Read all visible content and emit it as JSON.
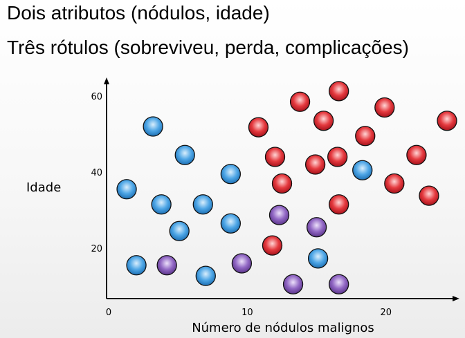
{
  "slide": {
    "line1": "Dois atributos (nódulos, idade)",
    "line2": "Três rótulos (sobreviveu, perda, complicações)"
  },
  "colors": {
    "blue": "#2e8fd9",
    "red": "#d8202c",
    "purple": "#7f55b0"
  },
  "chart_data": {
    "type": "scatter",
    "xlabel": "Número de nódulos malignos",
    "ylabel": "Idade",
    "xlim": [
      0,
      24.5
    ],
    "ylim": [
      8,
      62
    ],
    "xticks": [
      0,
      10,
      20
    ],
    "yticks": [
      20,
      40,
      60
    ],
    "grid": false,
    "legend": "none",
    "series": [
      {
        "color": "blue",
        "points": [
          [
            1.3,
            35.5
          ],
          [
            3.2,
            52
          ],
          [
            2.0,
            15.5
          ],
          [
            5.5,
            44.5
          ],
          [
            3.8,
            31.5
          ],
          [
            5.1,
            24.5
          ],
          [
            6.8,
            31.5
          ],
          [
            8.8,
            39.5
          ],
          [
            8.8,
            26.5
          ],
          [
            7.0,
            12.7
          ],
          [
            18.3,
            40.5
          ],
          [
            15.1,
            17.3
          ]
        ]
      },
      {
        "color": "red",
        "points": [
          [
            10.8,
            51.8
          ],
          [
            12.0,
            44.0
          ],
          [
            12.5,
            37.0
          ],
          [
            13.8,
            58.5
          ],
          [
            14.9,
            42.0
          ],
          [
            15.5,
            53.5
          ],
          [
            16.6,
            61.3
          ],
          [
            16.5,
            44.0
          ],
          [
            16.6,
            31.5
          ],
          [
            18.5,
            49.5
          ],
          [
            19.9,
            57.0
          ],
          [
            20.6,
            37.0
          ],
          [
            22.2,
            44.5
          ],
          [
            23.1,
            33.8
          ],
          [
            24.4,
            53.5
          ],
          [
            11.8,
            20.7
          ]
        ]
      },
      {
        "color": "purple",
        "points": [
          [
            4.2,
            15.5
          ],
          [
            9.6,
            16.0
          ],
          [
            12.3,
            28.7
          ],
          [
            15.0,
            25.5
          ],
          [
            13.3,
            10.5
          ],
          [
            16.6,
            10.5
          ]
        ]
      }
    ]
  }
}
